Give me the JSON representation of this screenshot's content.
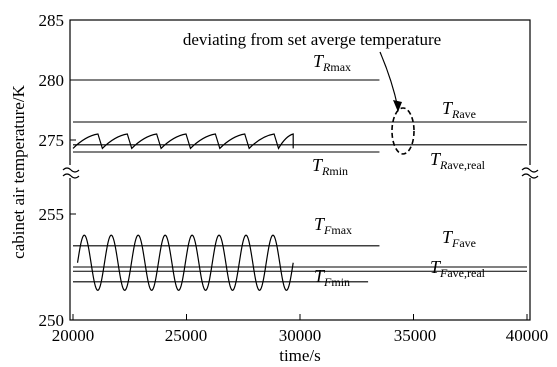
{
  "chart_data": {
    "type": "line",
    "title": "",
    "xlabel": "time/s",
    "ylabel": "cabinet air temperature/K",
    "xlim": [
      20000,
      40000
    ],
    "x_ticks": [
      "20000",
      "25000",
      "30000",
      "35000",
      "40000"
    ],
    "y_ticks": [
      "250",
      "255",
      "275",
      "280",
      "285"
    ],
    "y_axis_break": "between 255 and 275",
    "annotation": "deviating from set averge temperature",
    "lines": [
      {
        "id": "T_Rmax",
        "label_main": "T",
        "label_sub_i": "R",
        "label_sub": "max",
        "y": 280.0,
        "x": [
          20000,
          33500
        ]
      },
      {
        "id": "T_Rave",
        "label_main": "T",
        "label_sub_i": "R",
        "label_sub": "ave",
        "y": 276.5,
        "x": [
          20000,
          40000
        ]
      },
      {
        "id": "T_Rave_real",
        "label_main": "T",
        "label_sub_i": "R",
        "label_sub": "ave,real",
        "y": 274.6,
        "x": [
          20000,
          40000
        ]
      },
      {
        "id": "T_Rmin",
        "label_main": "T",
        "label_sub_i": "R",
        "label_sub": "min",
        "y": 274.0,
        "x": [
          20000,
          33500
        ]
      },
      {
        "id": "T_Fmax",
        "label_main": "T",
        "label_sub_i": "F",
        "label_sub": "max",
        "y": 253.5,
        "x": [
          20000,
          33500
        ]
      },
      {
        "id": "T_Fave",
        "label_main": "T",
        "label_sub_i": "F",
        "label_sub": "ave",
        "y": 252.5,
        "x": [
          20000,
          40000
        ]
      },
      {
        "id": "T_Fave_real",
        "label_main": "T",
        "label_sub_i": "F",
        "label_sub": "ave,real",
        "y": 252.3,
        "x": [
          20000,
          40000
        ]
      },
      {
        "id": "T_Fmin",
        "label_main": "T",
        "label_sub_i": "F",
        "label_sub": "min",
        "y": 251.8,
        "x": [
          20000,
          33000
        ]
      }
    ],
    "oscillations": [
      {
        "id": "refrigerator-sawtooth",
        "shape": "sawtooth",
        "x_range": [
          20000,
          29700
        ],
        "y_low": 274.3,
        "y_high": 275.5,
        "cycles": 7.5
      },
      {
        "id": "freezer-sine",
        "shape": "sine",
        "x_range": [
          20200,
          29700
        ],
        "y_low": 251.4,
        "y_high": 254.0,
        "cycles": 8
      }
    ]
  }
}
